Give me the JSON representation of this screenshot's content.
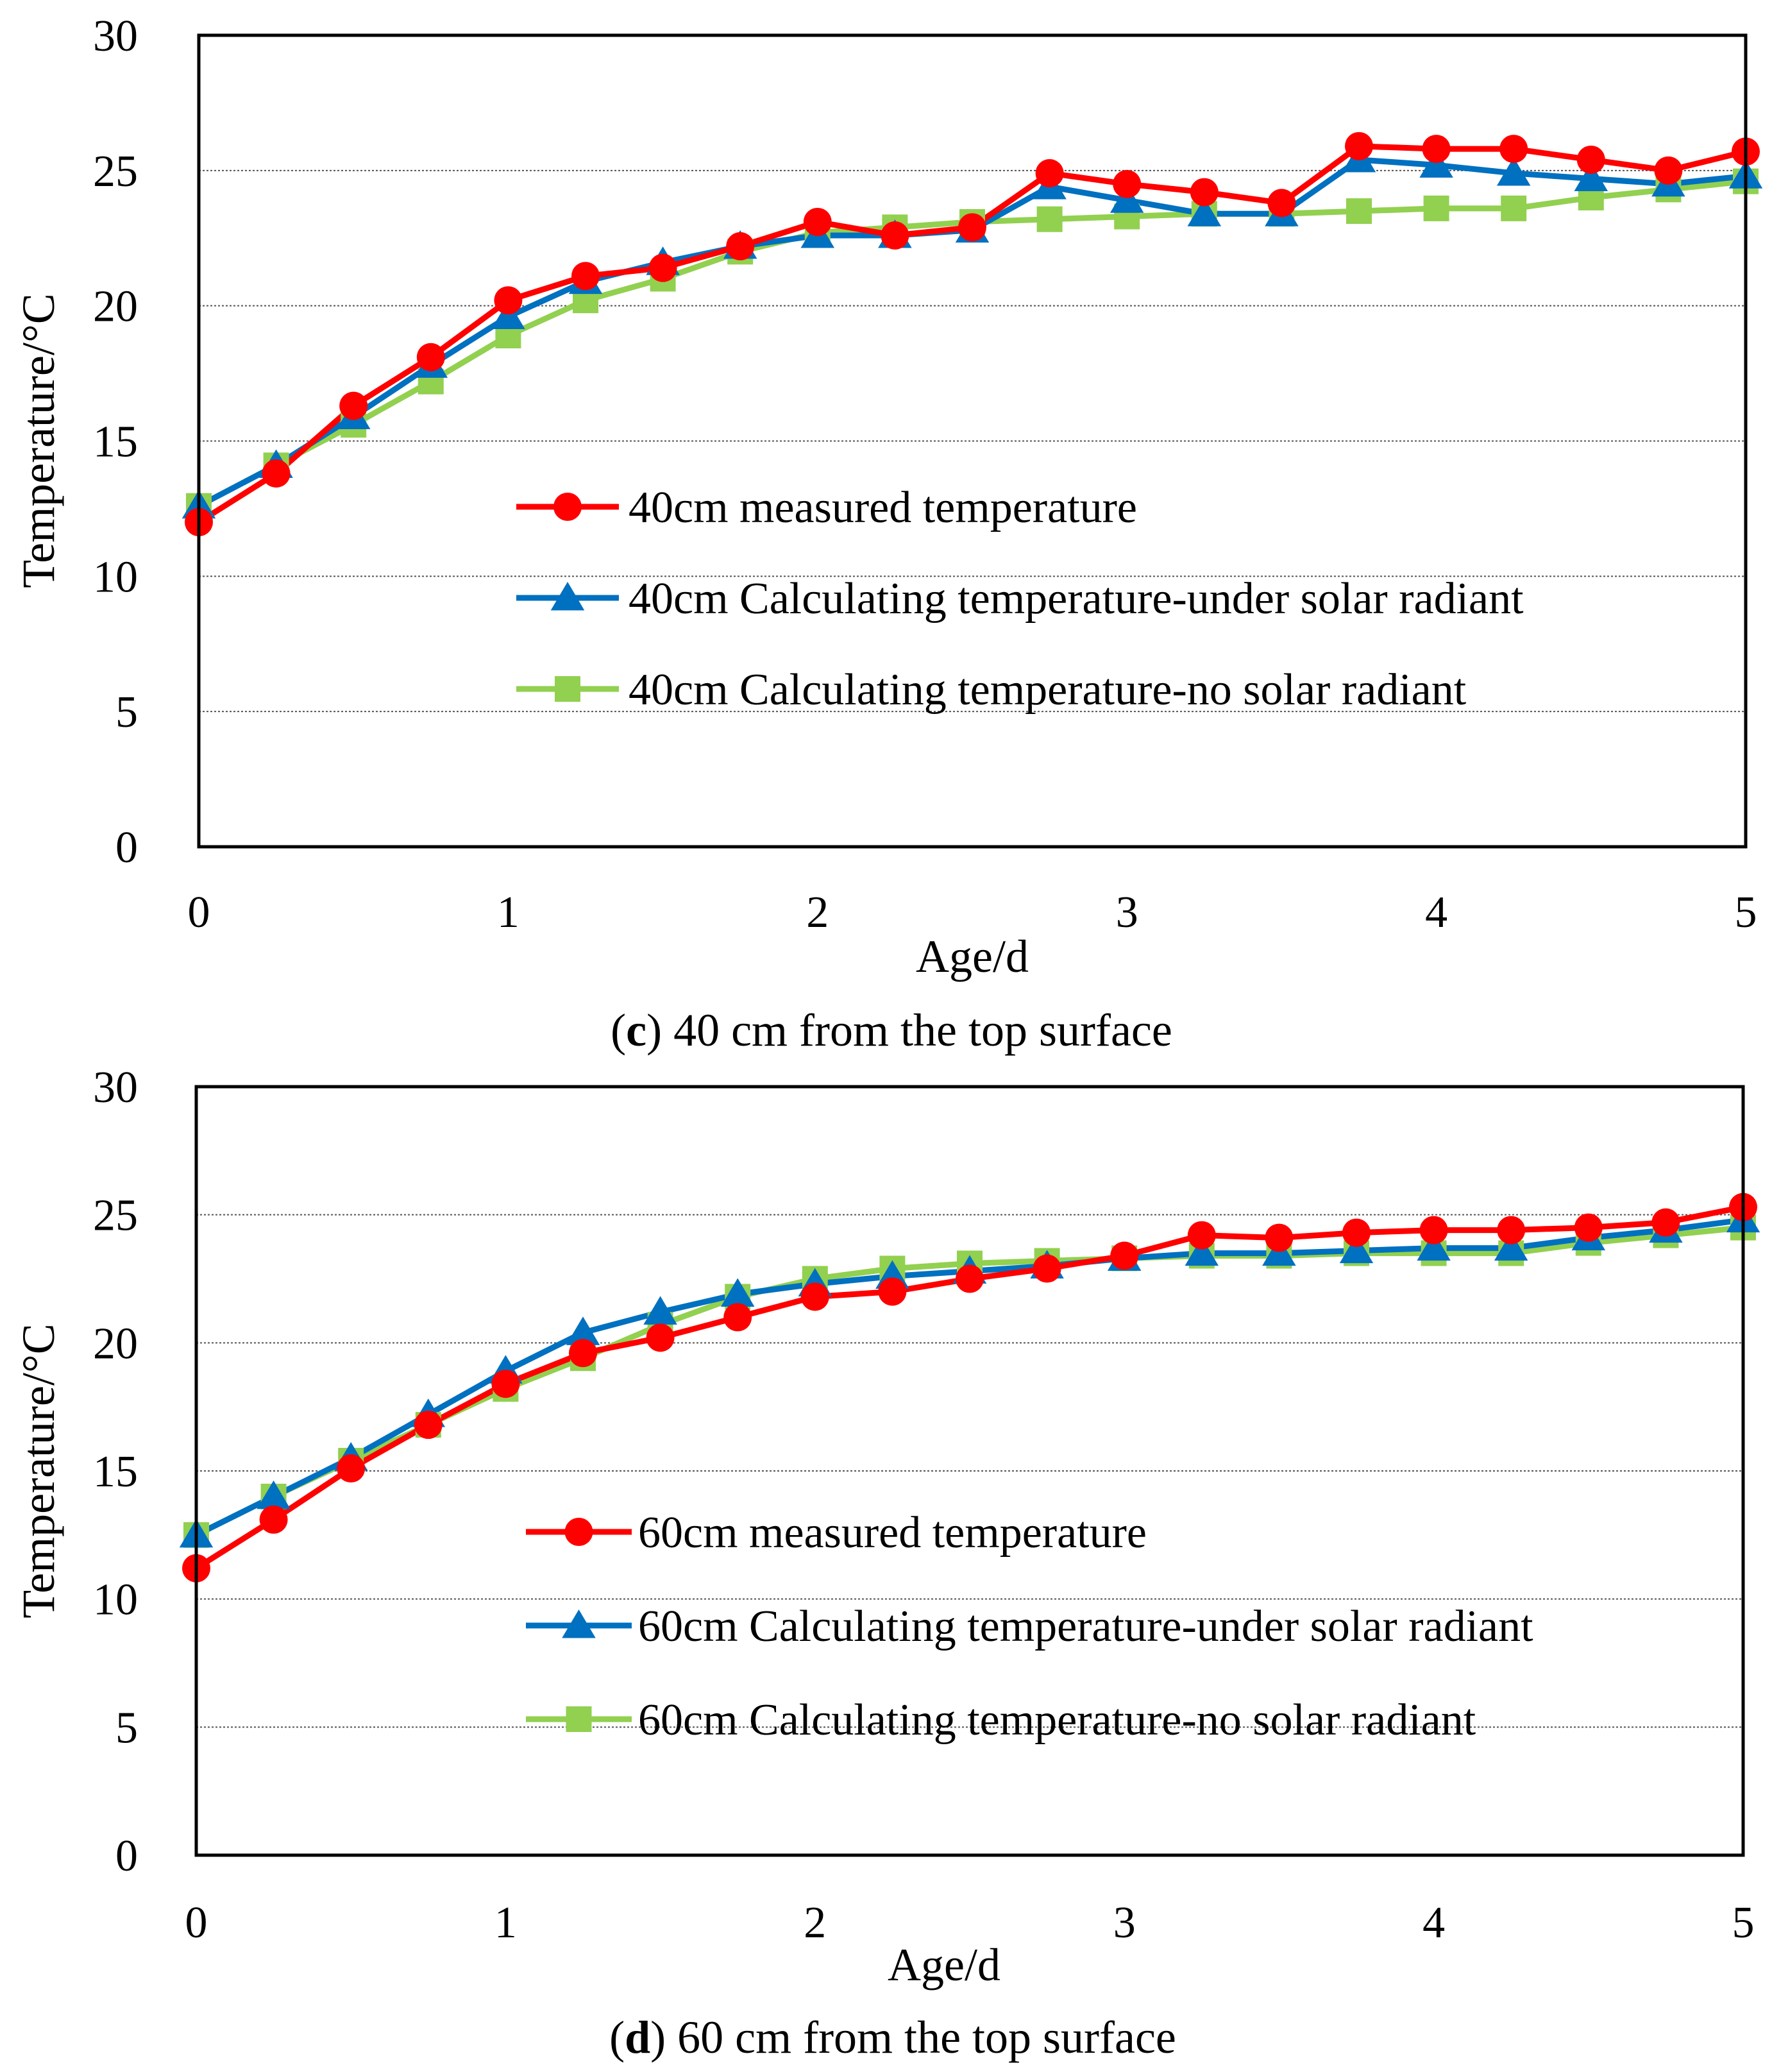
{
  "chart_data": [
    {
      "type": "line",
      "panel_label": "c",
      "caption": "40 cm from the top surface",
      "xlabel": "Age/d",
      "ylabel": "Temperature/°C",
      "xlim": [
        0,
        5
      ],
      "ylim": [
        0,
        30
      ],
      "x_ticks": [
        0,
        1,
        2,
        3,
        4,
        5
      ],
      "y_ticks": [
        0,
        5,
        10,
        15,
        20,
        25,
        30
      ],
      "grid": "horizontal",
      "legend_position": "center-right",
      "x": [
        0,
        0.25,
        0.5,
        0.75,
        1,
        1.25,
        1.5,
        1.75,
        2,
        2.25,
        2.5,
        2.75,
        3,
        3.25,
        3.5,
        3.75,
        4,
        4.25,
        4.5,
        4.75,
        5
      ],
      "series": [
        {
          "name": "40cm measured temperature",
          "color": "#ff0000",
          "marker": "circle",
          "values": [
            12.0,
            13.8,
            16.3,
            18.1,
            20.2,
            21.1,
            21.4,
            22.2,
            23.1,
            22.6,
            22.9,
            24.9,
            24.5,
            24.2,
            23.8,
            25.9,
            25.8,
            25.8,
            25.4,
            25.0,
            25.7
          ]
        },
        {
          "name": "40cm Calculating temperature-under solar radiant",
          "color": "#0070c0",
          "marker": "triangle",
          "values": [
            12.6,
            14.1,
            15.9,
            17.8,
            19.6,
            20.9,
            21.6,
            22.2,
            22.6,
            22.6,
            22.8,
            24.4,
            23.9,
            23.4,
            23.4,
            25.4,
            25.2,
            24.9,
            24.7,
            24.5,
            24.8
          ]
        },
        {
          "name": "40cm Calculating temperature-no solar radiant",
          "color": "#92d050",
          "marker": "square",
          "values": [
            12.6,
            14.1,
            15.6,
            17.2,
            18.9,
            20.2,
            21.0,
            22.0,
            22.7,
            22.9,
            23.1,
            23.2,
            23.3,
            23.4,
            23.4,
            23.5,
            23.6,
            23.6,
            24.0,
            24.3,
            24.6
          ]
        }
      ]
    },
    {
      "type": "line",
      "panel_label": "d",
      "caption": "60 cm from the top surface",
      "xlabel": "Age/d",
      "ylabel": "Temperature/°C",
      "xlim": [
        0,
        5
      ],
      "ylim": [
        0,
        30
      ],
      "x_ticks": [
        0,
        1,
        2,
        3,
        4,
        5
      ],
      "y_ticks": [
        0,
        5,
        10,
        15,
        20,
        25,
        30
      ],
      "grid": "horizontal",
      "legend_position": "center-right",
      "x": [
        0,
        0.25,
        0.5,
        0.75,
        1,
        1.25,
        1.5,
        1.75,
        2,
        2.25,
        2.5,
        2.75,
        3,
        3.25,
        3.5,
        3.75,
        4,
        4.25,
        4.5,
        4.75,
        5
      ],
      "series": [
        {
          "name": "60cm measured temperature",
          "color": "#ff0000",
          "marker": "circle",
          "values": [
            11.2,
            13.1,
            15.1,
            16.8,
            18.4,
            19.6,
            20.2,
            21.0,
            21.8,
            22.0,
            22.5,
            22.9,
            23.4,
            24.2,
            24.1,
            24.3,
            24.4,
            24.4,
            24.5,
            24.7,
            25.3
          ]
        },
        {
          "name": "60cm Calculating temperature-under solar radiant",
          "color": "#0070c0",
          "marker": "triangle",
          "values": [
            12.5,
            14.0,
            15.5,
            17.2,
            18.9,
            20.4,
            21.2,
            21.9,
            22.3,
            22.6,
            22.8,
            23.0,
            23.3,
            23.5,
            23.5,
            23.6,
            23.7,
            23.7,
            24.1,
            24.4,
            24.8
          ]
        },
        {
          "name": "60cm Calculating temperature-no solar radiant",
          "color": "#92d050",
          "marker": "square",
          "values": [
            12.5,
            14.0,
            15.4,
            16.8,
            18.2,
            19.4,
            20.7,
            21.8,
            22.5,
            22.9,
            23.1,
            23.2,
            23.3,
            23.4,
            23.4,
            23.5,
            23.5,
            23.5,
            23.9,
            24.2,
            24.5
          ]
        }
      ]
    }
  ]
}
